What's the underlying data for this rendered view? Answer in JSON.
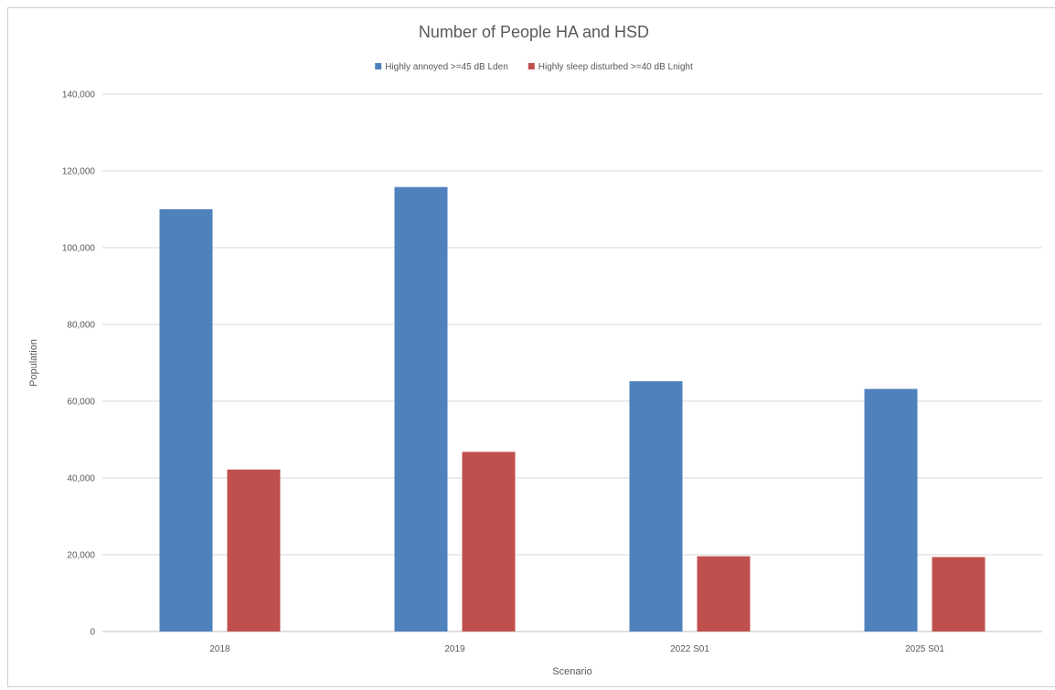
{
  "chart_data": {
    "type": "bar",
    "title": "Number of People HA and HSD",
    "xlabel": "Scenario",
    "ylabel": "Population",
    "categories": [
      "2018",
      "2019",
      "2022 S01",
      "2025 S01"
    ],
    "series": [
      {
        "name": "Highly annoyed >=45 dB Lden",
        "color": "#4f81bd",
        "values": [
          110000,
          115800,
          65200,
          63200
        ]
      },
      {
        "name": "Highly sleep disturbed >=40 dB Lnight",
        "color": "#c0504d",
        "values": [
          42200,
          46800,
          19600,
          19400
        ]
      }
    ],
    "ylim": [
      0,
      140000
    ],
    "yticks": [
      0,
      20000,
      40000,
      60000,
      80000,
      100000,
      120000,
      140000
    ],
    "ytick_labels": [
      "0",
      "20,000",
      "40,000",
      "60,000",
      "80,000",
      "100,000",
      "120,000",
      "140,000"
    ],
    "grid": true,
    "legend_position": "top"
  }
}
